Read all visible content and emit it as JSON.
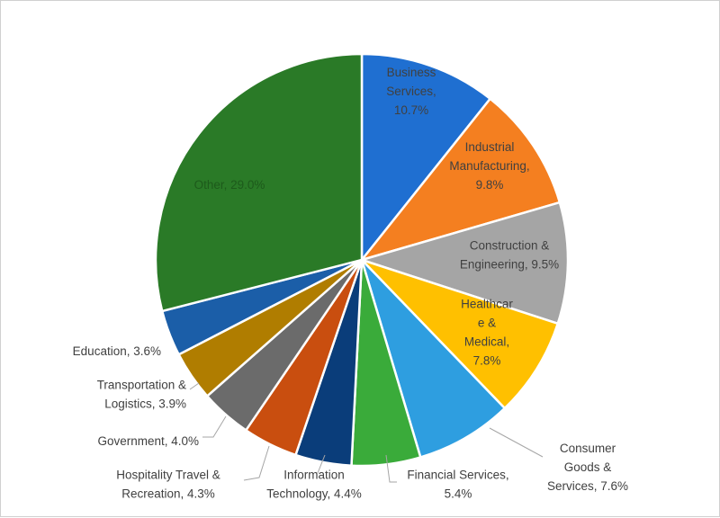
{
  "chart_data": {
    "type": "pie",
    "title": "",
    "slices": [
      {
        "label": "Business Services",
        "value": 10.7,
        "color": "#1f6fd1",
        "label_lines": [
          "Business",
          "Services,",
          "10.7%"
        ],
        "label_color": "#404040"
      },
      {
        "label": "Industrial Manufacturing",
        "value": 9.8,
        "color": "#f47f20",
        "label_lines": [
          "Industrial",
          "Manufacturing,",
          "9.8%"
        ],
        "label_color": "#404040"
      },
      {
        "label": "Construction & Engineering",
        "value": 9.5,
        "color": "#a5a5a5",
        "label_lines": [
          "Construction &",
          "Engineering, 9.5%"
        ],
        "label_color": "#404040"
      },
      {
        "label": "Healthcare & Medical",
        "value": 7.8,
        "color": "#ffc000",
        "label_lines": [
          "Healthcar",
          "e &",
          "Medical,",
          "7.8%"
        ],
        "label_color": "#404040"
      },
      {
        "label": "Consumer Goods & Services",
        "value": 7.6,
        "color": "#2e9ee0",
        "label_lines": [
          "Consumer",
          "Goods &",
          "Services, 7.6%"
        ],
        "label_color": "#404040"
      },
      {
        "label": "Financial Services",
        "value": 5.4,
        "color": "#3aab3a",
        "label_lines": [
          "Financial Services,",
          "5.4%"
        ],
        "label_color": "#404040"
      },
      {
        "label": "Information Technology",
        "value": 4.4,
        "color": "#0a3d7a",
        "label_lines": [
          "Information",
          "Technology, 4.4%"
        ],
        "label_color": "#404040"
      },
      {
        "label": "Hospitality Travel & Recreation",
        "value": 4.3,
        "color": "#c94e0f",
        "label_lines": [
          "Hospitality Travel &",
          "Recreation, 4.3%"
        ],
        "label_color": "#404040"
      },
      {
        "label": "Government",
        "value": 4.0,
        "color": "#6b6b6b",
        "label_lines": [
          "Government, 4.0%"
        ],
        "label_color": "#404040"
      },
      {
        "label": "Transportation & Logistics",
        "value": 3.9,
        "color": "#b07d00",
        "label_lines": [
          "Transportation &",
          "Logistics, 3.9%"
        ],
        "label_color": "#404040"
      },
      {
        "label": "Education",
        "value": 3.6,
        "color": "#1b5ea8",
        "label_lines": [
          "Education, 3.6%"
        ],
        "label_color": "#404040"
      },
      {
        "label": "Other",
        "value": 29.0,
        "color": "#2a7a27",
        "label_lines": [
          "Other, 29.0%"
        ],
        "label_color": "#1d5a1b"
      }
    ],
    "start_angle": "12 o'clock",
    "direction": "clockwise",
    "legend": "none"
  }
}
